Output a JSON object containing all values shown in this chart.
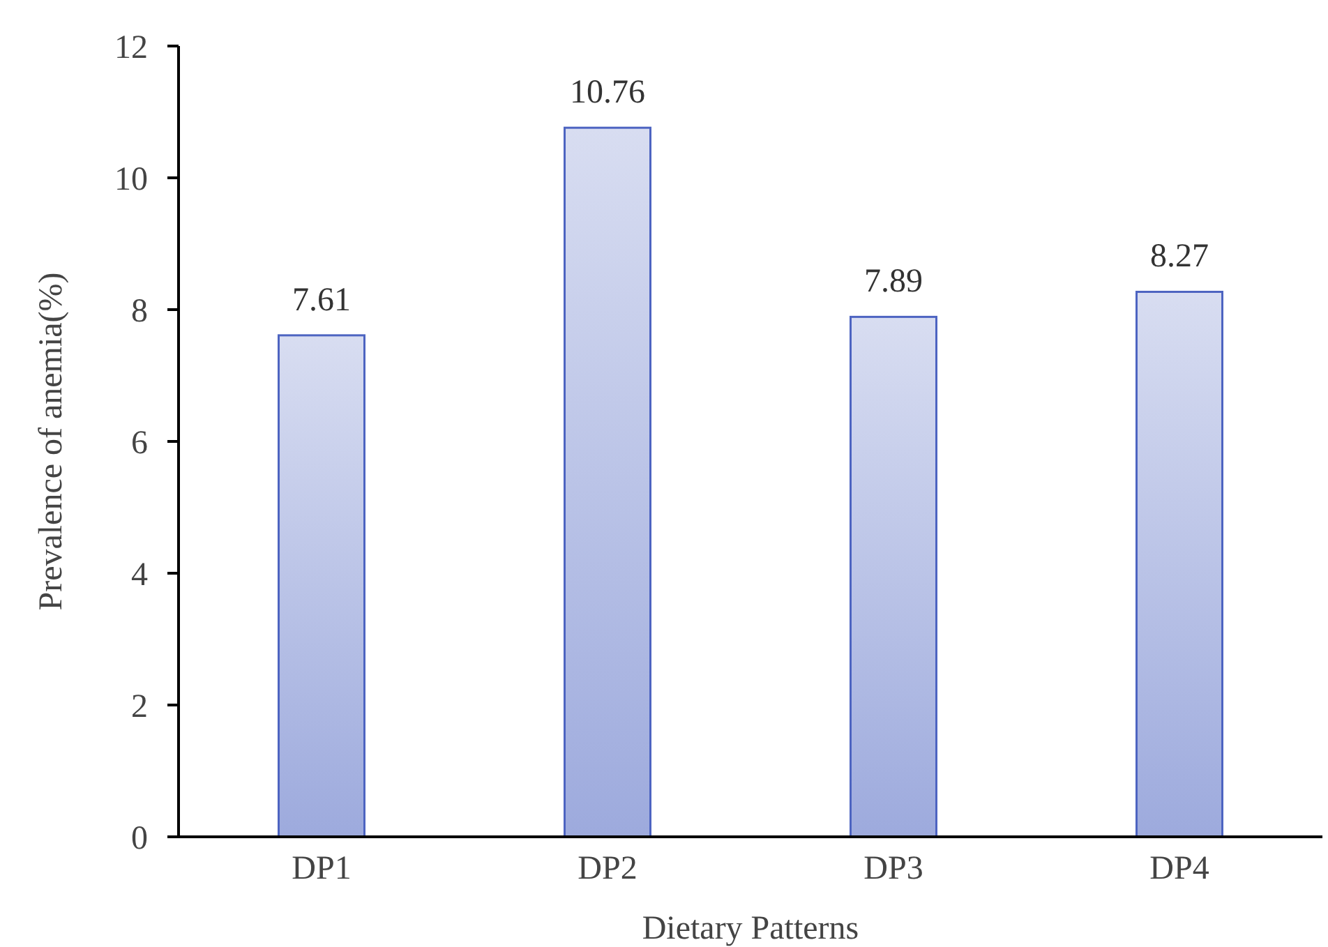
{
  "chart_data": {
    "type": "bar",
    "xlabel": "Dietary Patterns",
    "ylabel": "Prevalence of anemia(%)",
    "categories": [
      "DP1",
      "DP2",
      "DP3",
      "DP4"
    ],
    "values": [
      7.61,
      10.76,
      7.89,
      8.27
    ],
    "color": "#4d64c1",
    "ylim": [
      0,
      12
    ],
    "yticks": [
      0,
      2,
      4,
      6,
      8,
      10,
      12
    ],
    "grid": false,
    "data_labels": true
  }
}
